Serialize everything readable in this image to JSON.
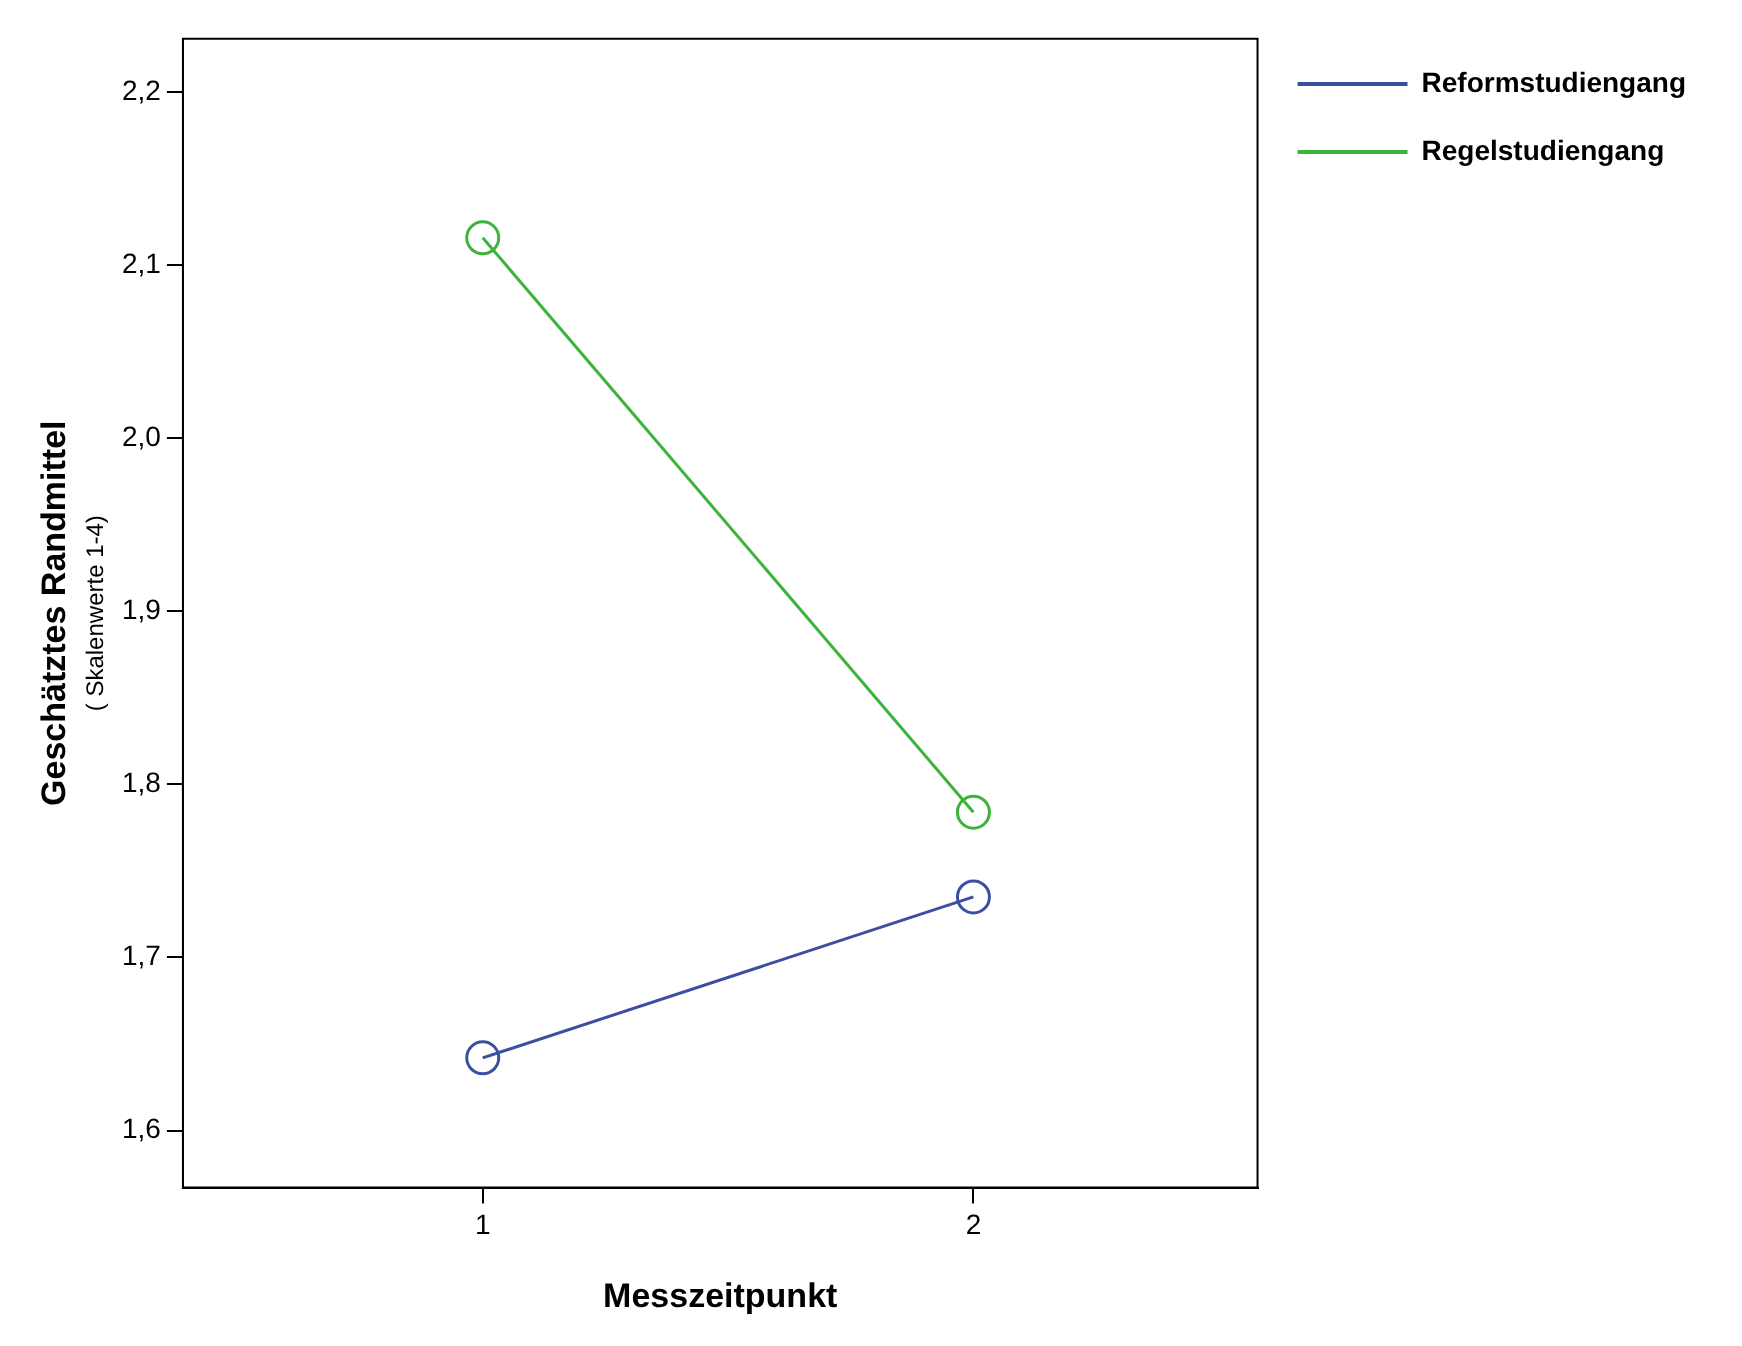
{
  "chart_data": {
    "type": "line",
    "xlabel": "Messzeitpunkt",
    "ylabel": "Geschätztes Randmittel",
    "annotations": [
      "( Skalenwerte 1-4)"
    ],
    "x": [
      1,
      2
    ],
    "series": [
      {
        "name": "Reformstudiengang",
        "color": "#3a4fa0",
        "values": [
          1.642,
          1.735
        ]
      },
      {
        "name": "Regelstudiengang",
        "color": "#3cb43c",
        "values": [
          2.116,
          1.784
        ]
      }
    ],
    "xlim": [
      0.389,
      2.579
    ],
    "xticks": [
      1,
      2
    ],
    "ylim": [
      1.567,
      2.231
    ],
    "yticks": [
      {
        "value": 1.6,
        "label": "1,6"
      },
      {
        "value": 1.7,
        "label": "1,7"
      },
      {
        "value": 1.8,
        "label": "1,8"
      },
      {
        "value": 1.9,
        "label": "1,9"
      },
      {
        "value": 2.0,
        "label": "2,0"
      },
      {
        "value": 2.1,
        "label": "2,1"
      },
      {
        "value": 2.2,
        "label": "2,2"
      }
    ],
    "grid": false,
    "legend": "top right",
    "marker": "circle",
    "line_style": "solid"
  }
}
